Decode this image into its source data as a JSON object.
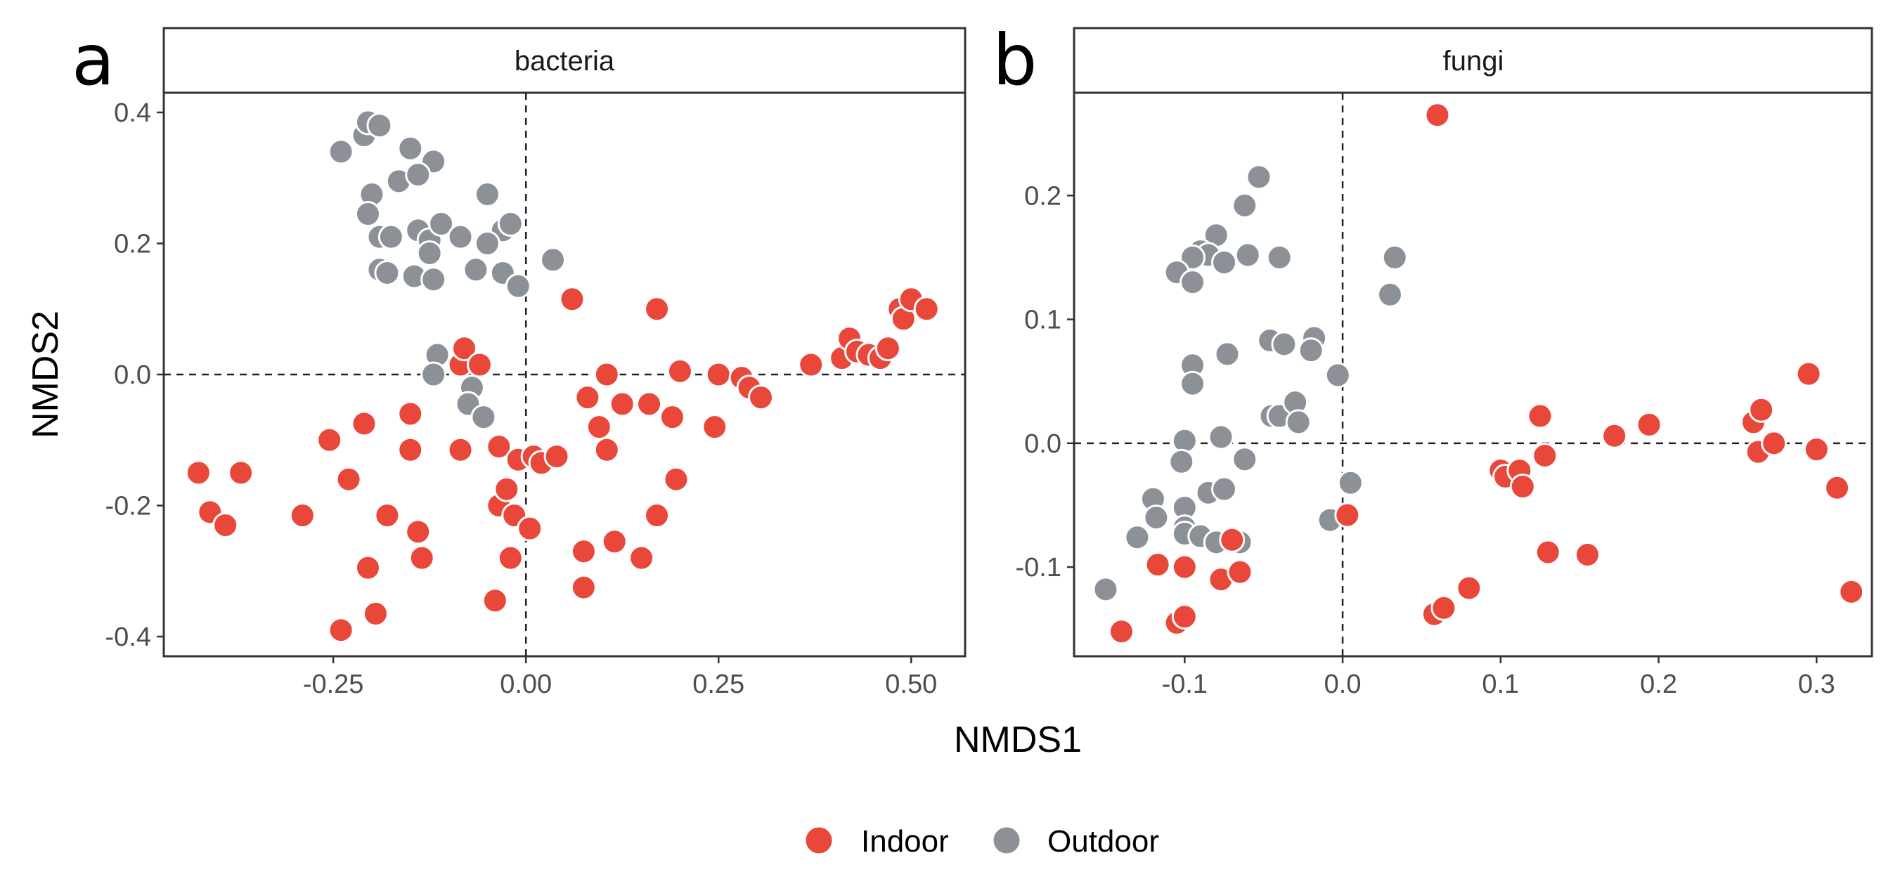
{
  "chart_data": [
    {
      "type": "scatter",
      "panel_label": "a",
      "strip_title": "bacteria",
      "xlabel": "NMDS1",
      "ylabel": "NMDS2",
      "xlim": [
        -0.47,
        0.57
      ],
      "ylim": [
        -0.43,
        0.43
      ],
      "xticks": [
        -0.25,
        0.0,
        0.25,
        0.5
      ],
      "xtick_labels": [
        "-0.25",
        "0.00",
        "0.25",
        "0.50"
      ],
      "yticks": [
        -0.4,
        -0.2,
        0.0,
        0.2,
        0.4
      ],
      "ytick_labels": [
        "-0.4",
        "-0.2",
        "0.0",
        "0.2",
        "0.4"
      ],
      "reference_lines": {
        "x": 0,
        "y": 0
      },
      "grid": false,
      "series": [
        {
          "name": "Outdoor",
          "color": "#8C9197",
          "points": [
            [
              -0.24,
              0.34
            ],
            [
              -0.21,
              0.365
            ],
            [
              -0.205,
              0.385
            ],
            [
              -0.19,
              0.38
            ],
            [
              -0.15,
              0.345
            ],
            [
              -0.12,
              0.325
            ],
            [
              -0.2,
              0.275
            ],
            [
              -0.165,
              0.295
            ],
            [
              -0.14,
              0.305
            ],
            [
              -0.05,
              0.275
            ],
            [
              -0.205,
              0.245
            ],
            [
              -0.19,
              0.21
            ],
            [
              -0.175,
              0.21
            ],
            [
              -0.14,
              0.22
            ],
            [
              -0.125,
              0.205
            ],
            [
              -0.11,
              0.23
            ],
            [
              -0.085,
              0.21
            ],
            [
              -0.03,
              0.22
            ],
            [
              -0.02,
              0.23
            ],
            [
              -0.125,
              0.185
            ],
            [
              -0.05,
              0.2
            ],
            [
              -0.19,
              0.16
            ],
            [
              -0.18,
              0.155
            ],
            [
              -0.145,
              0.15
            ],
            [
              -0.12,
              0.145
            ],
            [
              -0.065,
              0.16
            ],
            [
              -0.03,
              0.155
            ],
            [
              -0.01,
              0.135
            ],
            [
              0.035,
              0.175
            ],
            [
              -0.115,
              0.03
            ],
            [
              -0.12,
              0.0
            ],
            [
              -0.07,
              -0.02
            ],
            [
              -0.075,
              -0.045
            ],
            [
              -0.055,
              -0.065
            ]
          ]
        },
        {
          "name": "Indoor",
          "color": "#E8473A",
          "points": [
            [
              -0.425,
              -0.15
            ],
            [
              -0.41,
              -0.21
            ],
            [
              -0.39,
              -0.23
            ],
            [
              -0.37,
              -0.15
            ],
            [
              -0.29,
              -0.215
            ],
            [
              -0.255,
              -0.1
            ],
            [
              -0.24,
              -0.39
            ],
            [
              -0.23,
              -0.16
            ],
            [
              -0.21,
              -0.075
            ],
            [
              -0.205,
              -0.295
            ],
            [
              -0.195,
              -0.365
            ],
            [
              -0.18,
              -0.215
            ],
            [
              -0.15,
              -0.06
            ],
            [
              -0.15,
              -0.115
            ],
            [
              -0.14,
              -0.24
            ],
            [
              -0.135,
              -0.28
            ],
            [
              -0.085,
              -0.115
            ],
            [
              -0.085,
              0.015
            ],
            [
              -0.08,
              0.04
            ],
            [
              -0.06,
              0.015
            ],
            [
              -0.035,
              -0.11
            ],
            [
              -0.035,
              -0.2
            ],
            [
              -0.025,
              -0.175
            ],
            [
              -0.02,
              -0.28
            ],
            [
              -0.015,
              -0.215
            ],
            [
              -0.04,
              -0.345
            ],
            [
              -0.01,
              -0.13
            ],
            [
              0.005,
              -0.235
            ],
            [
              0.01,
              -0.125
            ],
            [
              0.02,
              -0.135
            ],
            [
              0.04,
              -0.125
            ],
            [
              0.06,
              0.115
            ],
            [
              0.075,
              -0.27
            ],
            [
              0.075,
              -0.325
            ],
            [
              0.08,
              -0.035
            ],
            [
              0.095,
              -0.08
            ],
            [
              0.105,
              -0.115
            ],
            [
              0.105,
              0.0
            ],
            [
              0.115,
              -0.255
            ],
            [
              0.125,
              -0.045
            ],
            [
              0.15,
              -0.28
            ],
            [
              0.16,
              -0.045
            ],
            [
              0.17,
              0.1
            ],
            [
              0.17,
              -0.215
            ],
            [
              0.19,
              -0.065
            ],
            [
              0.195,
              -0.16
            ],
            [
              0.2,
              0.005
            ],
            [
              0.245,
              -0.08
            ],
            [
              0.25,
              0.0
            ],
            [
              0.28,
              -0.005
            ],
            [
              0.29,
              -0.02
            ],
            [
              0.305,
              -0.035
            ],
            [
              0.37,
              0.015
            ],
            [
              0.41,
              0.025
            ],
            [
              0.42,
              0.055
            ],
            [
              0.43,
              0.035
            ],
            [
              0.445,
              0.03
            ],
            [
              0.46,
              0.025
            ],
            [
              0.47,
              0.04
            ],
            [
              0.485,
              0.1
            ],
            [
              0.49,
              0.085
            ],
            [
              0.5,
              0.115
            ],
            [
              0.52,
              0.1
            ]
          ]
        }
      ]
    },
    {
      "type": "scatter",
      "panel_label": "b",
      "strip_title": "fungi",
      "xlabel": "NMDS1",
      "ylabel": "NMDS2",
      "xlim": [
        -0.17,
        0.335
      ],
      "ylim": [
        -0.172,
        0.283
      ],
      "xticks": [
        -0.1,
        0.0,
        0.1,
        0.2,
        0.3
      ],
      "xtick_labels": [
        "-0.1",
        "0.0",
        "0.1",
        "0.2",
        "0.3"
      ],
      "yticks": [
        -0.1,
        0.0,
        0.1,
        0.2
      ],
      "ytick_labels": [
        "-0.1",
        "0.0",
        "0.1",
        "0.2"
      ],
      "reference_lines": {
        "x": 0,
        "y": 0
      },
      "grid": false,
      "series": [
        {
          "name": "Outdoor",
          "color": "#8C9197",
          "points": [
            [
              -0.053,
              0.215
            ],
            [
              -0.062,
              0.192
            ],
            [
              -0.08,
              0.168
            ],
            [
              -0.09,
              0.155
            ],
            [
              -0.085,
              0.152
            ],
            [
              -0.095,
              0.15
            ],
            [
              -0.075,
              0.146
            ],
            [
              -0.04,
              0.15
            ],
            [
              -0.105,
              0.138
            ],
            [
              -0.095,
              0.13
            ],
            [
              0.033,
              0.15
            ],
            [
              0.03,
              0.12
            ],
            [
              -0.06,
              0.152
            ],
            [
              -0.095,
              0.063
            ],
            [
              -0.095,
              0.048
            ],
            [
              -0.073,
              0.072
            ],
            [
              -0.046,
              0.083
            ],
            [
              -0.037,
              0.08
            ],
            [
              -0.018,
              0.085
            ],
            [
              -0.02,
              0.075
            ],
            [
              -0.003,
              0.055
            ],
            [
              -0.045,
              0.022
            ],
            [
              -0.04,
              0.022
            ],
            [
              -0.03,
              0.033
            ],
            [
              -0.028,
              0.017
            ],
            [
              -0.1,
              0.002
            ],
            [
              -0.077,
              0.005
            ],
            [
              -0.062,
              -0.013
            ],
            [
              -0.102,
              -0.015
            ],
            [
              -0.1,
              -0.052
            ],
            [
              -0.085,
              -0.04
            ],
            [
              -0.075,
              -0.037
            ],
            [
              -0.12,
              -0.045
            ],
            [
              -0.118,
              -0.06
            ],
            [
              -0.13,
              -0.076
            ],
            [
              -0.1,
              -0.068
            ],
            [
              -0.1,
              -0.073
            ],
            [
              -0.09,
              -0.075
            ],
            [
              -0.08,
              -0.08
            ],
            [
              -0.065,
              -0.08
            ],
            [
              -0.008,
              -0.062
            ],
            [
              0.005,
              -0.032
            ],
            [
              -0.15,
              -0.118
            ]
          ]
        },
        {
          "name": "Indoor",
          "color": "#E8473A",
          "points": [
            [
              0.06,
              0.265
            ],
            [
              -0.117,
              -0.098
            ],
            [
              -0.1,
              -0.1
            ],
            [
              -0.077,
              -0.11
            ],
            [
              -0.07,
              -0.078
            ],
            [
              -0.065,
              -0.104
            ],
            [
              -0.14,
              -0.152
            ],
            [
              -0.105,
              -0.145
            ],
            [
              -0.1,
              -0.14
            ],
            [
              0.003,
              -0.058
            ],
            [
              0.058,
              -0.138
            ],
            [
              0.064,
              -0.133
            ],
            [
              0.08,
              -0.117
            ],
            [
              0.1,
              -0.022
            ],
            [
              0.103,
              -0.027
            ],
            [
              0.112,
              -0.022
            ],
            [
              0.114,
              -0.035
            ],
            [
              0.125,
              0.022
            ],
            [
              0.128,
              -0.01
            ],
            [
              0.13,
              -0.088
            ],
            [
              0.155,
              -0.09
            ],
            [
              0.172,
              0.006
            ],
            [
              0.194,
              0.015
            ],
            [
              0.26,
              0.017
            ],
            [
              0.263,
              -0.007
            ],
            [
              0.265,
              0.027
            ],
            [
              0.273,
              0.0
            ],
            [
              0.295,
              0.056
            ],
            [
              0.3,
              -0.005
            ],
            [
              0.313,
              -0.036
            ],
            [
              0.322,
              -0.12
            ]
          ]
        }
      ]
    }
  ],
  "legend": {
    "position": "bottom",
    "items": [
      {
        "label": "Indoor",
        "color": "#E8473A"
      },
      {
        "label": "Outdoor",
        "color": "#8C9197"
      }
    ]
  },
  "shared_xlabel": "NMDS1",
  "shared_ylabel": "NMDS2"
}
